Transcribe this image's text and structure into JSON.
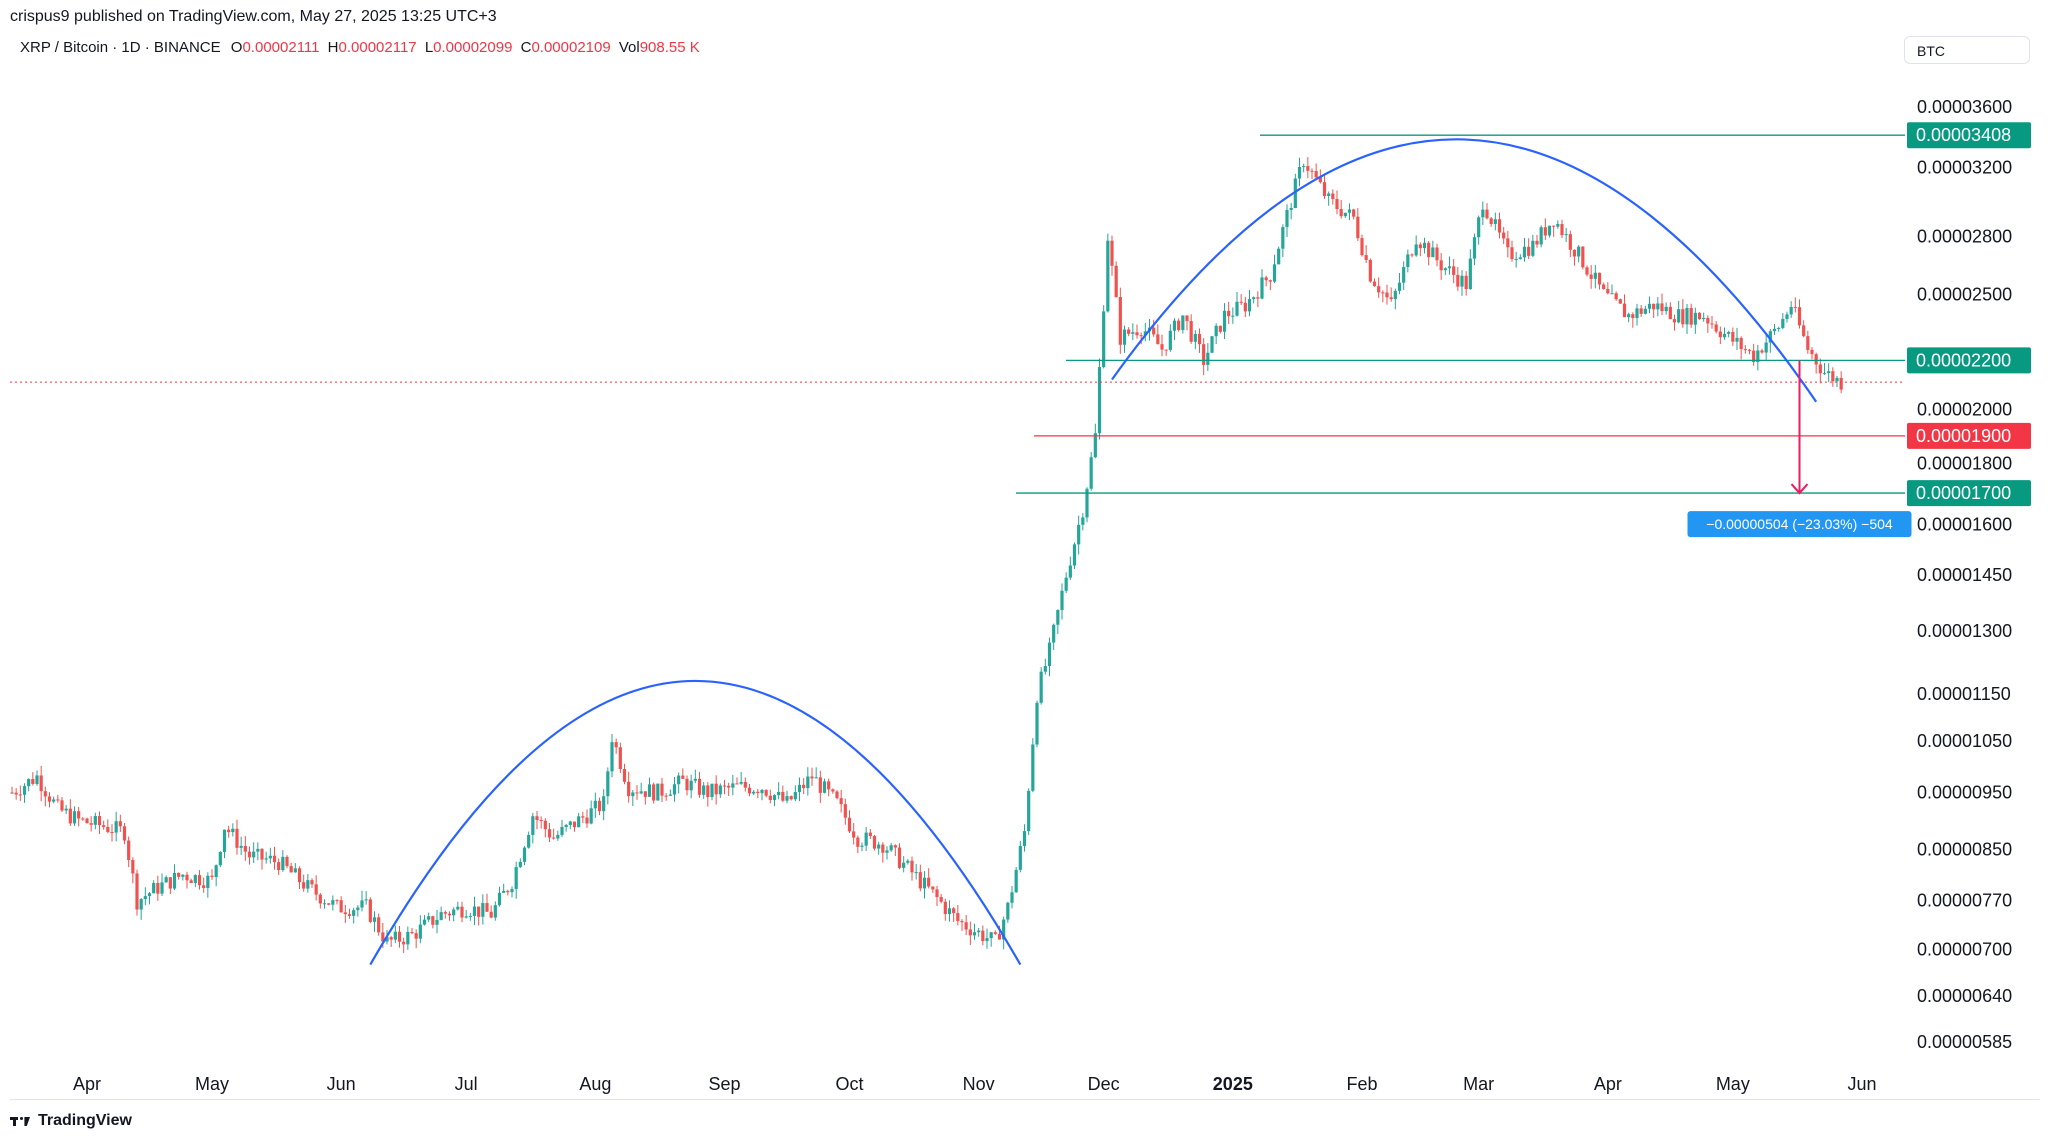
{
  "header": {
    "publisher_line": "crispus9 published on TradingView.com, May 27, 2025 13:25 UTC+3"
  },
  "legend": {
    "symbol": "XRP / Bitcoin · 1D · BINANCE",
    "open_label": "O",
    "open": "0.00002111",
    "high_label": "H",
    "high": "0.00002117",
    "low_label": "L",
    "low": "0.00002099",
    "close_label": "C",
    "close": "0.00002109",
    "vol_label": "Vol",
    "vol": "908.55 K"
  },
  "currency": "BTC",
  "footer": {
    "brand": "TradingView"
  },
  "colors": {
    "up": "#26a69a",
    "down": "#ef5350",
    "curve": "#2962ff",
    "teal_line": "#089981",
    "red_line": "#f23645",
    "measure": "#e91e63",
    "tooltip": "#2196f3",
    "price_line": "#f23645"
  },
  "chart_data": {
    "type": "candlestick",
    "title": "",
    "xlabel": "",
    "ylabel": "",
    "y_scale": "log",
    "ylim": [
      5.5e-06,
      3.8e-06
    ],
    "x_ticks": [
      "Apr",
      "May",
      "Jun",
      "Jul",
      "Aug",
      "Sep",
      "Oct",
      "Nov",
      "Dec",
      "2025",
      "Feb",
      "Mar",
      "Apr",
      "May",
      "Jun"
    ],
    "y_ticks": [
      "0.00003600",
      "0.00003200",
      "0.00002800",
      "0.00002500",
      "0.00002000",
      "0.00001800",
      "0.00001600",
      "0.00001450",
      "0.00001300",
      "0.00001150",
      "0.00001050",
      "0.00000950",
      "0.00000850",
      "0.00000770",
      "0.00000700",
      "0.00000640",
      "0.00000585"
    ],
    "y_tick_values": [
      3.6e-05,
      3.2e-05,
      2.8e-05,
      2.5e-05,
      2e-05,
      1.8e-05,
      1.6e-05,
      1.45e-05,
      1.3e-05,
      1.15e-05,
      1.05e-05,
      9.5e-06,
      8.5e-06,
      7.7e-06,
      7e-06,
      6.4e-06,
      5.85e-06
    ],
    "series": [
      {
        "type": "close_path",
        "points": [
          [
            "2024-03-14",
            9.5e-06
          ],
          [
            "2024-03-20",
            9.8e-06
          ],
          [
            "2024-03-25",
            9.2e-06
          ],
          [
            "2024-03-30",
            9e-06
          ],
          [
            "2024-04-05",
            8.9e-06
          ],
          [
            "2024-04-10",
            8.8e-06
          ],
          [
            "2024-04-13",
            7.7e-06
          ],
          [
            "2024-04-18",
            7.9e-06
          ],
          [
            "2024-04-24",
            8.1e-06
          ],
          [
            "2024-05-01",
            8e-06
          ],
          [
            "2024-05-04",
            8.9e-06
          ],
          [
            "2024-05-10",
            8.4e-06
          ],
          [
            "2024-05-17",
            8.3e-06
          ],
          [
            "2024-05-24",
            7.9e-06
          ],
          [
            "2024-05-31",
            7.6e-06
          ],
          [
            "2024-06-07",
            7.6e-06
          ],
          [
            "2024-06-12",
            7.1e-06
          ],
          [
            "2024-06-18",
            7.2e-06
          ],
          [
            "2024-06-25",
            7.5e-06
          ],
          [
            "2024-07-01",
            7.6e-06
          ],
          [
            "2024-07-07",
            7.5e-06
          ],
          [
            "2024-07-12",
            8e-06
          ],
          [
            "2024-07-17",
            9.1e-06
          ],
          [
            "2024-07-22",
            8.7e-06
          ],
          [
            "2024-07-28",
            9e-06
          ],
          [
            "2024-08-03",
            9.3e-06
          ],
          [
            "2024-08-05",
            1.06e-05
          ],
          [
            "2024-08-09",
            9.6e-06
          ],
          [
            "2024-08-16",
            9.5e-06
          ],
          [
            "2024-08-22",
            9.7e-06
          ],
          [
            "2024-08-28",
            9.5e-06
          ],
          [
            "2024-09-04",
            9.6e-06
          ],
          [
            "2024-09-10",
            9.6e-06
          ],
          [
            "2024-09-16",
            9.3e-06
          ],
          [
            "2024-09-22",
            9.8e-06
          ],
          [
            "2024-09-28",
            9.3e-06
          ],
          [
            "2024-10-03",
            8.7e-06
          ],
          [
            "2024-10-09",
            8.6e-06
          ],
          [
            "2024-10-15",
            8.2e-06
          ],
          [
            "2024-10-21",
            7.8e-06
          ],
          [
            "2024-10-27",
            7.4e-06
          ],
          [
            "2024-11-02",
            7.2e-06
          ],
          [
            "2024-11-05",
            7.1e-06
          ],
          [
            "2024-11-08",
            7.6e-06
          ],
          [
            "2024-11-12",
            8.8e-06
          ],
          [
            "2024-11-15",
            1.15e-05
          ],
          [
            "2024-11-18",
            1.25e-05
          ],
          [
            "2024-11-22",
            1.45e-05
          ],
          [
            "2024-11-26",
            1.65e-05
          ],
          [
            "2024-11-29",
            1.9e-05
          ],
          [
            "2024-12-02",
            2.8e-05
          ],
          [
            "2024-12-05",
            2.3e-05
          ],
          [
            "2024-12-10",
            2.35e-05
          ],
          [
            "2024-12-15",
            2.25e-05
          ],
          [
            "2024-12-20",
            2.4e-05
          ],
          [
            "2024-12-25",
            2.2e-05
          ],
          [
            "2024-12-30",
            2.4e-05
          ],
          [
            "2025-01-04",
            2.45e-05
          ],
          [
            "2025-01-10",
            2.6e-05
          ],
          [
            "2025-01-15",
            3e-05
          ],
          [
            "2025-01-18",
            3.25e-05
          ],
          [
            "2025-01-24",
            3e-05
          ],
          [
            "2025-01-30",
            2.9e-05
          ],
          [
            "2025-02-03",
            2.6e-05
          ],
          [
            "2025-02-08",
            2.45e-05
          ],
          [
            "2025-02-14",
            2.8e-05
          ],
          [
            "2025-02-20",
            2.65e-05
          ],
          [
            "2025-02-26",
            2.55e-05
          ],
          [
            "2025-03-02",
            3e-05
          ],
          [
            "2025-03-08",
            2.7e-05
          ],
          [
            "2025-03-14",
            2.75e-05
          ],
          [
            "2025-03-19",
            2.9e-05
          ],
          [
            "2025-03-25",
            2.7e-05
          ],
          [
            "2025-03-31",
            2.5e-05
          ],
          [
            "2025-04-06",
            2.4e-05
          ],
          [
            "2025-04-12",
            2.45e-05
          ],
          [
            "2025-04-18",
            2.4e-05
          ],
          [
            "2025-04-24",
            2.4e-05
          ],
          [
            "2025-04-30",
            2.3e-05
          ],
          [
            "2025-05-06",
            2.22e-05
          ],
          [
            "2025-05-12",
            2.35e-05
          ],
          [
            "2025-05-15",
            2.45e-05
          ],
          [
            "2025-05-19",
            2.25e-05
          ],
          [
            "2025-05-23",
            2.15e-05
          ],
          [
            "2025-05-27",
            2.109e-05
          ]
        ]
      }
    ],
    "horizontal_levels": [
      {
        "value": "0.00003408",
        "y": 3.408e-05,
        "color": "#089981"
      },
      {
        "value": "0.00002200",
        "y": 2.2e-05,
        "color": "#089981"
      },
      {
        "value": "0.00001900",
        "y": 1.9e-05,
        "color": "#f23645"
      },
      {
        "value": "0.00001700",
        "y": 1.7e-05,
        "color": "#089981"
      }
    ],
    "last_price": 2.109e-05,
    "annotations": {
      "measure_label": "−0.00000504 (−23.03%) −504",
      "rounding_top_1": [
        "2024-06-08",
        "2024-11-11"
      ],
      "rounding_top_2": [
        "2024-12-03",
        "2025-05-21"
      ]
    }
  }
}
